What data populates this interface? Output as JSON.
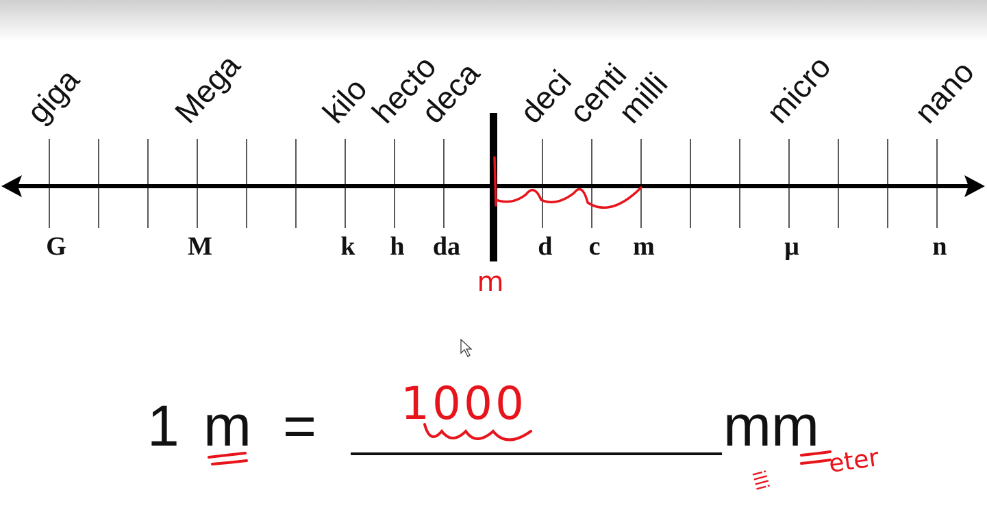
{
  "prefixes": [
    {
      "name": "giga",
      "symbol": "G"
    },
    {
      "name": "Mega",
      "symbol": "M"
    },
    {
      "name": "kilo",
      "symbol": "k"
    },
    {
      "name": "hecto",
      "symbol": "h"
    },
    {
      "name": "deca",
      "symbol": "da"
    },
    {
      "name": "deci",
      "symbol": "d"
    },
    {
      "name": "centi",
      "symbol": "c"
    },
    {
      "name": "milli",
      "symbol": "m"
    },
    {
      "name": "micro",
      "symbol": "μ"
    },
    {
      "name": "nano",
      "symbol": "n"
    }
  ],
  "base_mark": "m",
  "equation": {
    "lhs_number": "1",
    "lhs_unit": "m",
    "equals": "=",
    "answer": "1000",
    "rhs_unit": "mm"
  },
  "annotations": {
    "milli_note": "illi",
    "meter_note": "eter"
  }
}
